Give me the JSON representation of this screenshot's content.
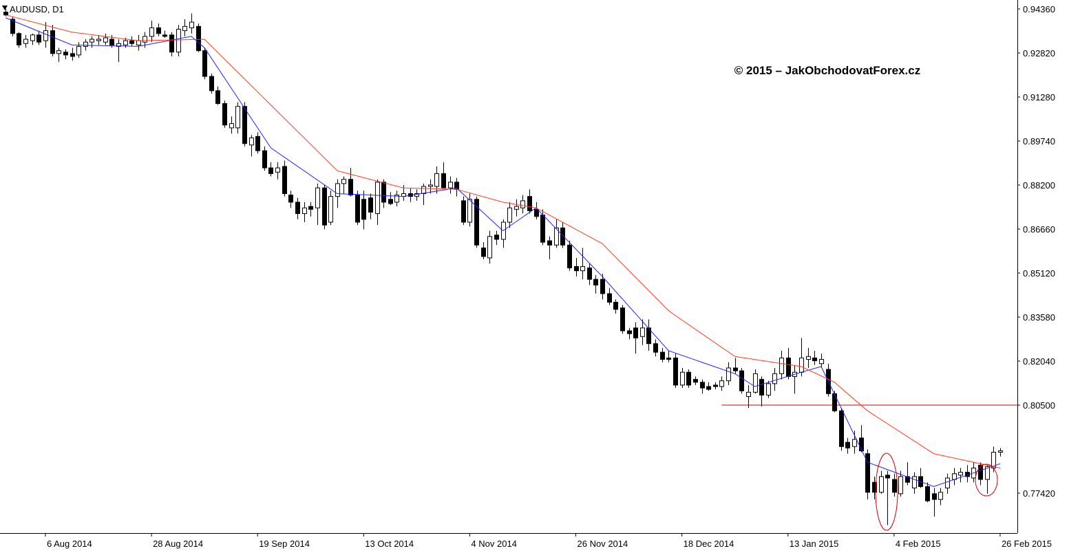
{
  "chart_data": {
    "type": "candlestick",
    "title": "AUDUSD, D1",
    "annotation": "© 2015 – JakObchodovatForex.cz",
    "annotation_color": "#e00000",
    "bull_color": "#ffffff",
    "bear_color": "#000000",
    "outline_color": "#000000",
    "ylim": [
      0.76024,
      0.94673
    ],
    "xlim": [
      -0.85,
      152.6
    ],
    "yticks": [
      {
        "value": 0.9436,
        "label": "0.94360"
      },
      {
        "value": 0.9282,
        "label": "0.92820"
      },
      {
        "value": 0.9128,
        "label": "0.91280"
      },
      {
        "value": 0.8974,
        "label": "0.89740"
      },
      {
        "value": 0.882,
        "label": "0.88200"
      },
      {
        "value": 0.8666,
        "label": "0.86660"
      },
      {
        "value": 0.8512,
        "label": "0.85120"
      },
      {
        "value": 0.8358,
        "label": "0.83580"
      },
      {
        "value": 0.8204,
        "label": "0.82040"
      },
      {
        "value": 0.805,
        "label": "0.80500"
      },
      {
        "value": 0.7742,
        "label": "0.77420"
      }
    ],
    "xticks": [
      {
        "value": 6,
        "label": "6 Aug 2014"
      },
      {
        "value": 22,
        "label": "28 Aug 2014"
      },
      {
        "value": 38,
        "label": "19 Sep 2014"
      },
      {
        "value": 54,
        "label": "13 Oct 2014"
      },
      {
        "value": 70,
        "label": "4 Nov 2014"
      },
      {
        "value": 86,
        "label": "26 Nov 2014"
      },
      {
        "value": 102,
        "label": "18 Dec 2014"
      },
      {
        "value": 118,
        "label": "13 Jan 2015"
      },
      {
        "value": 134,
        "label": "4 Feb 2015"
      },
      {
        "value": 150,
        "label": "26 Feb 2015"
      }
    ],
    "candles": [
      [
        0.9425,
        0.9436,
        0.941,
        0.9415
      ],
      [
        0.94,
        0.941,
        0.934,
        0.935
      ],
      [
        0.935,
        0.9355,
        0.93,
        0.931
      ],
      [
        0.9315,
        0.9345,
        0.93,
        0.933
      ],
      [
        0.9325,
        0.935,
        0.931,
        0.9345
      ],
      [
        0.9345,
        0.936,
        0.931,
        0.932
      ],
      [
        0.9325,
        0.939,
        0.93,
        0.936
      ],
      [
        0.936,
        0.938,
        0.927,
        0.928
      ],
      [
        0.928,
        0.93,
        0.925,
        0.929
      ],
      [
        0.9285,
        0.9295,
        0.926,
        0.9275
      ],
      [
        0.928,
        0.93,
        0.9255,
        0.927
      ],
      [
        0.9275,
        0.932,
        0.9265,
        0.9305
      ],
      [
        0.9305,
        0.933,
        0.929,
        0.932
      ],
      [
        0.932,
        0.934,
        0.93,
        0.933
      ],
      [
        0.9325,
        0.9345,
        0.931,
        0.933
      ],
      [
        0.932,
        0.935,
        0.931,
        0.9335
      ],
      [
        0.933,
        0.9345,
        0.93,
        0.931
      ],
      [
        0.9305,
        0.933,
        0.925,
        0.9315
      ],
      [
        0.931,
        0.9335,
        0.93,
        0.9325
      ],
      [
        0.9325,
        0.934,
        0.9305,
        0.9315
      ],
      [
        0.931,
        0.9345,
        0.929,
        0.9325
      ],
      [
        0.932,
        0.9355,
        0.93,
        0.934
      ],
      [
        0.934,
        0.9395,
        0.932,
        0.937
      ],
      [
        0.937,
        0.9385,
        0.934,
        0.935
      ],
      [
        0.9345,
        0.936,
        0.9335,
        0.934
      ],
      [
        0.9345,
        0.9355,
        0.927,
        0.9285
      ],
      [
        0.9285,
        0.938,
        0.927,
        0.9365
      ],
      [
        0.936,
        0.94,
        0.934,
        0.9375
      ],
      [
        0.937,
        0.942,
        0.935,
        0.939
      ],
      [
        0.9375,
        0.9385,
        0.9285,
        0.929
      ],
      [
        0.929,
        0.93,
        0.919,
        0.92
      ],
      [
        0.92,
        0.921,
        0.914,
        0.915
      ],
      [
        0.915,
        0.9165,
        0.91,
        0.9105
      ],
      [
        0.9105,
        0.9115,
        0.902,
        0.903
      ],
      [
        0.902,
        0.906,
        0.9,
        0.9035
      ],
      [
        0.902,
        0.911,
        0.9,
        0.9095
      ],
      [
        0.9095,
        0.911,
        0.8955,
        0.8965
      ],
      [
        0.896,
        0.8995,
        0.892,
        0.8985
      ],
      [
        0.899,
        0.9005,
        0.893,
        0.894
      ],
      [
        0.894,
        0.8955,
        0.887,
        0.888
      ],
      [
        0.888,
        0.89,
        0.885,
        0.886
      ],
      [
        0.8865,
        0.89,
        0.884,
        0.888
      ],
      [
        0.8885,
        0.8905,
        0.878,
        0.879
      ],
      [
        0.8785,
        0.88,
        0.874,
        0.876
      ],
      [
        0.876,
        0.8775,
        0.87,
        0.872
      ],
      [
        0.872,
        0.876,
        0.869,
        0.874
      ],
      [
        0.8745,
        0.876,
        0.871,
        0.8735
      ],
      [
        0.874,
        0.8825,
        0.868,
        0.881
      ],
      [
        0.881,
        0.882,
        0.8665,
        0.868
      ],
      [
        0.869,
        0.88,
        0.868,
        0.878
      ],
      [
        0.878,
        0.884,
        0.874,
        0.8825
      ],
      [
        0.8825,
        0.885,
        0.879,
        0.884
      ],
      [
        0.884,
        0.888,
        0.878,
        0.8785
      ],
      [
        0.8785,
        0.88,
        0.868,
        0.869
      ],
      [
        0.877,
        0.88,
        0.8665,
        0.87
      ],
      [
        0.8775,
        0.879,
        0.87,
        0.8725
      ],
      [
        0.872,
        0.884,
        0.868,
        0.883
      ],
      [
        0.883,
        0.884,
        0.874,
        0.876
      ],
      [
        0.877,
        0.8795,
        0.875,
        0.8755
      ],
      [
        0.876,
        0.88,
        0.8745,
        0.8785
      ],
      [
        0.878,
        0.882,
        0.8765,
        0.879
      ],
      [
        0.879,
        0.881,
        0.876,
        0.878
      ],
      [
        0.878,
        0.8805,
        0.8765,
        0.879
      ],
      [
        0.879,
        0.8825,
        0.875,
        0.8815
      ],
      [
        0.8815,
        0.884,
        0.879,
        0.882
      ],
      [
        0.8815,
        0.8885,
        0.879,
        0.886
      ],
      [
        0.886,
        0.89,
        0.881,
        0.881
      ],
      [
        0.881,
        0.885,
        0.879,
        0.883
      ],
      [
        0.883,
        0.8845,
        0.878,
        0.8805
      ],
      [
        0.8765,
        0.878,
        0.868,
        0.869
      ],
      [
        0.869,
        0.879,
        0.8675,
        0.877
      ],
      [
        0.877,
        0.878,
        0.86,
        0.861
      ],
      [
        0.86,
        0.862,
        0.856,
        0.857
      ],
      [
        0.8565,
        0.866,
        0.8545,
        0.864
      ],
      [
        0.8645,
        0.866,
        0.861,
        0.863
      ],
      [
        0.863,
        0.87,
        0.86,
        0.869
      ],
      [
        0.869,
        0.876,
        0.867,
        0.874
      ],
      [
        0.8735,
        0.877,
        0.871,
        0.8745
      ],
      [
        0.874,
        0.8785,
        0.872,
        0.8765
      ],
      [
        0.878,
        0.8805,
        0.872,
        0.873
      ],
      [
        0.8735,
        0.876,
        0.87,
        0.871
      ],
      [
        0.8715,
        0.8735,
        0.861,
        0.862
      ],
      [
        0.8625,
        0.864,
        0.856,
        0.861
      ],
      [
        0.861,
        0.87,
        0.86,
        0.867
      ],
      [
        0.867,
        0.869,
        0.86,
        0.861
      ],
      [
        0.861,
        0.8625,
        0.852,
        0.853
      ],
      [
        0.8535,
        0.8565,
        0.85,
        0.852
      ],
      [
        0.852,
        0.86,
        0.849,
        0.8535
      ],
      [
        0.853,
        0.8545,
        0.847,
        0.849
      ],
      [
        0.849,
        0.8505,
        0.844,
        0.847
      ],
      [
        0.849,
        0.851,
        0.842,
        0.844
      ],
      [
        0.844,
        0.846,
        0.84,
        0.841
      ],
      [
        0.841,
        0.842,
        0.837,
        0.8385
      ],
      [
        0.839,
        0.84,
        0.83,
        0.831
      ],
      [
        0.831,
        0.832,
        0.828,
        0.83
      ],
      [
        0.832,
        0.834,
        0.823,
        0.8285
      ],
      [
        0.829,
        0.835,
        0.826,
        0.832
      ],
      [
        0.832,
        0.835,
        0.824,
        0.8265
      ],
      [
        0.8265,
        0.828,
        0.822,
        0.8235
      ],
      [
        0.8235,
        0.825,
        0.82,
        0.821
      ],
      [
        0.8215,
        0.824,
        0.82,
        0.821
      ],
      [
        0.8215,
        0.823,
        0.811,
        0.812
      ],
      [
        0.812,
        0.818,
        0.811,
        0.8165
      ],
      [
        0.8165,
        0.8175,
        0.811,
        0.812
      ],
      [
        0.814,
        0.815,
        0.812,
        0.813
      ],
      [
        0.813,
        0.814,
        0.809,
        0.811
      ],
      [
        0.8115,
        0.813,
        0.81,
        0.8105
      ],
      [
        0.812,
        0.813,
        0.8105,
        0.8115
      ],
      [
        0.8115,
        0.815,
        0.81,
        0.8135
      ],
      [
        0.8135,
        0.82,
        0.812,
        0.818
      ],
      [
        0.818,
        0.8215,
        0.816,
        0.817
      ],
      [
        0.817,
        0.818,
        0.809,
        0.81
      ],
      [
        0.808,
        0.812,
        0.804,
        0.8095
      ],
      [
        0.8095,
        0.8175,
        0.809,
        0.816
      ],
      [
        0.814,
        0.815,
        0.8045,
        0.8085
      ],
      [
        0.8085,
        0.8135,
        0.8075,
        0.8125
      ],
      [
        0.8125,
        0.818,
        0.81,
        0.816
      ],
      [
        0.816,
        0.824,
        0.814,
        0.8215
      ],
      [
        0.8215,
        0.825,
        0.814,
        0.815
      ],
      [
        0.815,
        0.819,
        0.809,
        0.8165
      ],
      [
        0.8165,
        0.8285,
        0.815,
        0.8215
      ],
      [
        0.821,
        0.825,
        0.818,
        0.822
      ],
      [
        0.8215,
        0.824,
        0.819,
        0.8205
      ],
      [
        0.8195,
        0.823,
        0.818,
        0.821
      ],
      [
        0.8175,
        0.8195,
        0.808,
        0.809
      ],
      [
        0.809,
        0.81,
        0.8025,
        0.803
      ],
      [
        0.803,
        0.804,
        0.789,
        0.7905
      ],
      [
        0.792,
        0.7935,
        0.788,
        0.79
      ],
      [
        0.7905,
        0.796,
        0.788,
        0.793
      ],
      [
        0.7935,
        0.798,
        0.7885,
        0.789
      ],
      [
        0.788,
        0.7895,
        0.772,
        0.7745
      ],
      [
        0.778,
        0.78,
        0.772,
        0.7745
      ],
      [
        0.7745,
        0.782,
        0.774,
        0.78
      ],
      [
        0.7805,
        0.782,
        0.763,
        0.7795
      ],
      [
        0.779,
        0.781,
        0.773,
        0.7745
      ],
      [
        0.774,
        0.782,
        0.773,
        0.78
      ],
      [
        0.78,
        0.785,
        0.777,
        0.778
      ],
      [
        0.776,
        0.7815,
        0.774,
        0.78
      ],
      [
        0.78,
        0.783,
        0.776,
        0.7765
      ],
      [
        0.7765,
        0.778,
        0.771,
        0.7715
      ],
      [
        0.774,
        0.776,
        0.766,
        0.772
      ],
      [
        0.772,
        0.776,
        0.77,
        0.7745
      ],
      [
        0.776,
        0.781,
        0.774,
        0.7795
      ],
      [
        0.779,
        0.783,
        0.777,
        0.781
      ],
      [
        0.7805,
        0.783,
        0.778,
        0.7815
      ],
      [
        0.7815,
        0.784,
        0.778,
        0.78
      ],
      [
        0.7795,
        0.785,
        0.778,
        0.783
      ],
      [
        0.784,
        0.785,
        0.777,
        0.779
      ],
      [
        0.779,
        0.784,
        0.774,
        0.7835
      ],
      [
        0.783,
        0.7905,
        0.7815,
        0.7885
      ],
      [
        0.7885,
        0.79,
        0.787,
        0.789
      ]
    ],
    "lines": [
      {
        "color": "#2020ff",
        "x": [
          0,
          10,
          20,
          28,
          30,
          40,
          50,
          60,
          68,
          75,
          80,
          90,
          100,
          110,
          113,
          120,
          123,
          130,
          140,
          150
        ],
        "values": [
          0.9405,
          0.931,
          0.9305,
          0.934,
          0.93,
          0.895,
          0.879,
          0.878,
          0.881,
          0.866,
          0.874,
          0.85,
          0.824,
          0.816,
          0.8115,
          0.8165,
          0.8185,
          0.785,
          0.7765,
          0.7845
        ]
      },
      {
        "color": "#ff3b1f",
        "x": [
          0,
          10,
          20,
          30,
          40,
          50,
          60,
          68,
          75,
          80,
          90,
          100,
          110,
          120,
          125,
          130,
          140,
          150
        ],
        "values": [
          0.9415,
          0.9355,
          0.9325,
          0.933,
          0.91,
          0.887,
          0.881,
          0.8805,
          0.876,
          0.874,
          0.8615,
          0.838,
          0.822,
          0.8185,
          0.813,
          0.803,
          0.788,
          0.783
        ]
      }
    ],
    "level": {
      "value": 0.805,
      "color": "#d00000"
    }
  }
}
